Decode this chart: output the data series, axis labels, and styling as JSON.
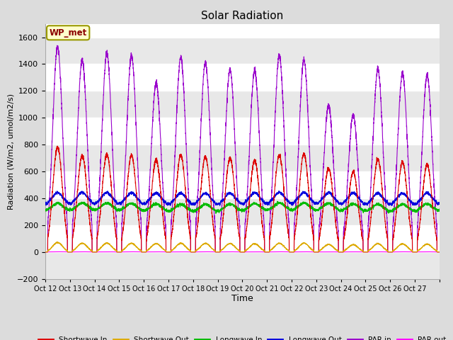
{
  "title": "Solar Radiation",
  "xlabel": "Time",
  "ylabel": "Radiation (W/m2, umol/m2/s)",
  "ylim": [
    -200,
    1700
  ],
  "yticks": [
    -200,
    0,
    200,
    400,
    600,
    800,
    1000,
    1200,
    1400,
    1600
  ],
  "background_color": "#dcdcdc",
  "plot_bg_color": "#ffffff",
  "grid_color": "#e0e0e0",
  "legend_label": "WP_met",
  "series": {
    "shortwave_in": {
      "label": "Shortwave In",
      "color": "#dd0000"
    },
    "shortwave_out": {
      "label": "Shortwave Out",
      "color": "#ddaa00"
    },
    "longwave_in": {
      "label": "Longwave In",
      "color": "#00bb00"
    },
    "longwave_out": {
      "label": "Longwave Out",
      "color": "#0000dd"
    },
    "par_in": {
      "label": "PAR in",
      "color": "#9900cc"
    },
    "par_out": {
      "label": "PAR out",
      "color": "#ff00ff"
    }
  },
  "xtick_labels": [
    "Oct 12",
    "Oct 13",
    "Oct 14",
    "Oct 15",
    "Oct 16",
    "Oct 17",
    "Oct 18",
    "Oct 19",
    "Oct 20",
    "Oct 21",
    "Oct 22",
    "Oct 23",
    "Oct 24",
    "Oct 25",
    "Oct 26",
    "Oct 27"
  ],
  "n_days": 16,
  "points_per_day": 288
}
